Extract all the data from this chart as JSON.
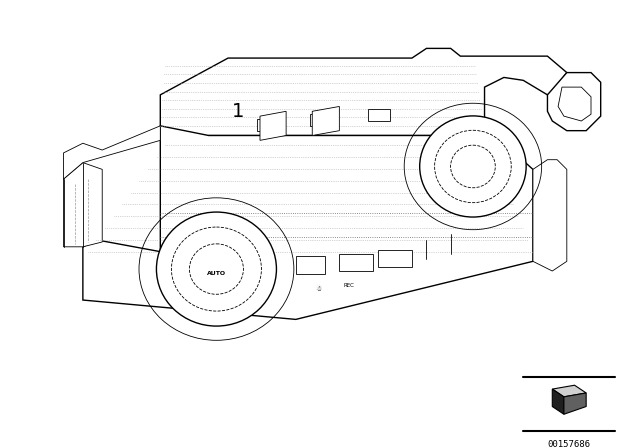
{
  "background_color": "#ffffff",
  "line_color": "#000000",
  "dot_color": "#888888",
  "label_1": "1",
  "catalog_code": "00157686",
  "figsize": [
    6.4,
    4.48
  ],
  "dpi": 100,
  "lw_main": 1.0,
  "lw_thin": 0.6,
  "lw_dot": 0.5
}
